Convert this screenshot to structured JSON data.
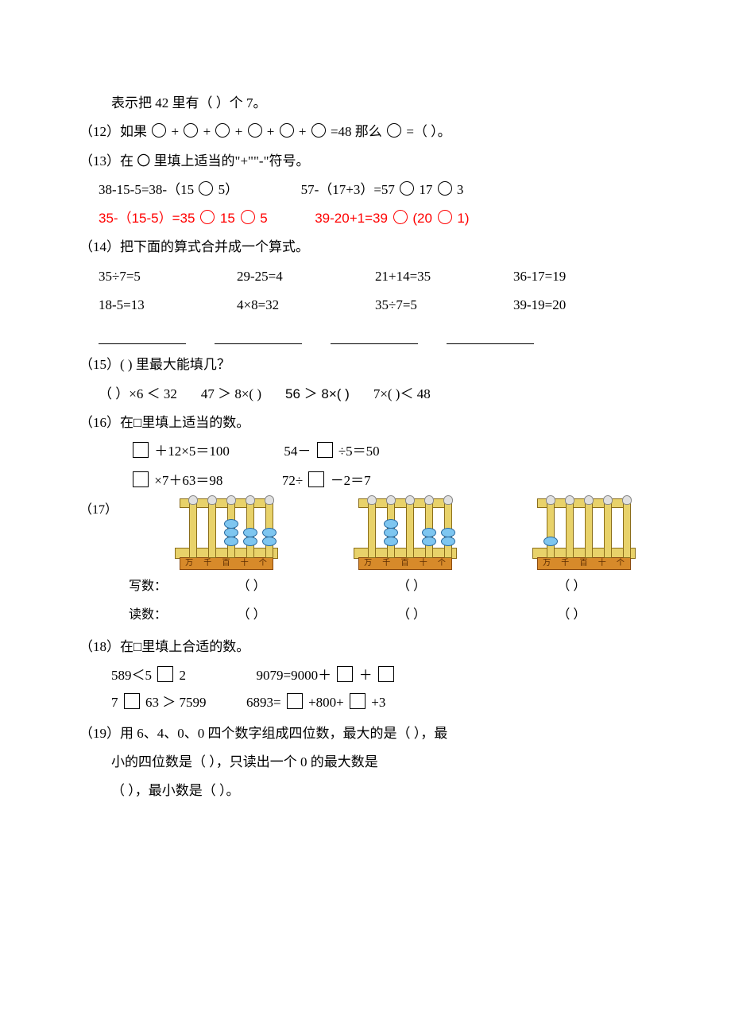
{
  "colors": {
    "text": "#000000",
    "red": "#ff0000",
    "bg": "#ffffff",
    "abacus_fill": "#e8d26a",
    "abacus_border": "#8a6d1a",
    "label_fill": "#d78a2a",
    "bead_fill": "#7ec6f0",
    "bead_border": "#2a6aa0"
  },
  "font": {
    "base_family": "SimSun",
    "base_size_pt": 12,
    "arial": "Arial"
  },
  "q11": {
    "text": "表示把 42 里有（   ）个 7。"
  },
  "q12": {
    "prefix": "（12）如果",
    "middle": "=48  那么 ",
    "suffix": "=（   ）。",
    "circle_count": 6
  },
  "q13": {
    "head": "（13）在 〇 里填上适当的\"+\"\"-\"符号。",
    "l1a_pre": "38-15-5=38-（15",
    "l1a_post": "5）",
    "l1b_pre": "57-（17+3）=57",
    "l1b_mid": "17",
    "l1b_post": "3",
    "l2a_pre": "35-（15-5）=35 ",
    "l2a_mid": "15",
    "l2a_post": "5",
    "l2b_pre": "39-20+1=39 ",
    "l2b_mid": "(20  ",
    "l2b_post": "1)"
  },
  "q14": {
    "head": "（14）把下面的算式合并成一个算式。",
    "rows": [
      [
        "35÷7=5",
        "29-25=4",
        "21+14=35",
        "36-17=19"
      ],
      [
        "18-5=13",
        "4×8=32",
        "35÷7=5",
        "39-19=20"
      ]
    ]
  },
  "q15": {
    "head": "（15）( ) 里最大能填几？",
    "items": [
      "（  ）×6 ＜ 32",
      "47 ＞ 8×(  )",
      "56 ＞ 8×(  )",
      "7×(  )＜ 48"
    ]
  },
  "q16": {
    "head": "（16）在□里填上适当的数。",
    "r1a_pre": "",
    "r1a_post": "＋12×5＝100",
    "r1b_pre": "54－",
    "r1b_post": "÷5＝50",
    "r2a_pre": "",
    "r2a_post": "×7＋63＝98",
    "r2b_pre": "72÷",
    "r2b_post": "－2＝7"
  },
  "q17": {
    "head": "（17）",
    "rod_labels": [
      "万",
      "千",
      "百",
      "十",
      "个"
    ],
    "abaci": [
      {
        "beads": [
          0,
          0,
          3,
          2,
          2
        ]
      },
      {
        "beads": [
          0,
          3,
          0,
          2,
          2
        ]
      },
      {
        "beads": [
          1,
          0,
          0,
          0,
          0
        ]
      }
    ],
    "write_label": "写数：",
    "read_label": "读数：",
    "paren": "（            ）"
  },
  "q18": {
    "head": "（18）在□里填上合适的数。",
    "l1a_pre": "589＜5",
    "l1a_post": "2",
    "l1b_pre": "9079=9000＋",
    "l1b_mid": "＋",
    "l2a_pre": "7",
    "l2a_mid": "63 ＞ 7599",
    "l2b_pre": "6893=",
    "l2b_mid": "+800+",
    "l2b_post": "+3"
  },
  "q19": {
    "l1": "（19）用 6、4、0、0 四个数字组成四位数，最大的是（        ），最",
    "l2": "小的四位数是（         ），只读出一个 0 的最大数是",
    "l3": "（        ），最小数是（        ）。"
  }
}
